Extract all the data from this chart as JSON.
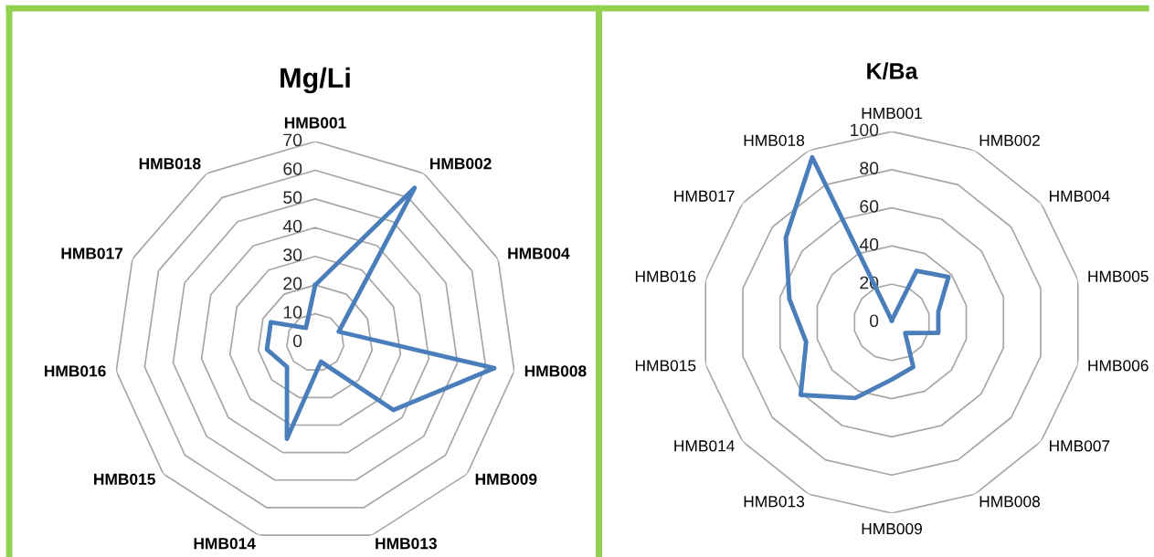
{
  "chart_data": [
    {
      "type": "radar",
      "title": "Mg/Li",
      "categories": [
        "HMB001",
        "HMB002",
        "HMB004",
        "HMB008",
        "HMB009",
        "HMB013",
        "HMB014",
        "HMB015",
        "HMB016",
        "HMB017",
        "HMB018"
      ],
      "series": [
        {
          "color": "#4a7ebb",
          "values": [
            20,
            64,
            9,
            63,
            36,
            7,
            35,
            13,
            17,
            17,
            6
          ]
        }
      ],
      "ylim": [
        0,
        70
      ],
      "yticks": [
        0,
        10,
        20,
        30,
        40,
        50,
        60,
        70
      ],
      "grid": true
    },
    {
      "type": "radar",
      "title": "K/Ba",
      "categories": [
        "HMB001",
        "HMB002",
        "HMB004",
        "HMB005",
        "HMB006",
        "HMB007",
        "HMB008",
        "HMB009",
        "HMB013",
        "HMB014",
        "HMB015",
        "HMB016",
        "HMB017",
        "HMB018"
      ],
      "series": [
        {
          "color": "#4a7ebb",
          "values": [
            1,
            30,
            38,
            25,
            25,
            9,
            26,
            30,
            44,
            61,
            46,
            55,
            71,
            96
          ]
        }
      ],
      "ylim": [
        0,
        100
      ],
      "yticks": [
        0,
        20,
        40,
        60,
        80,
        100
      ],
      "grid": true
    }
  ]
}
